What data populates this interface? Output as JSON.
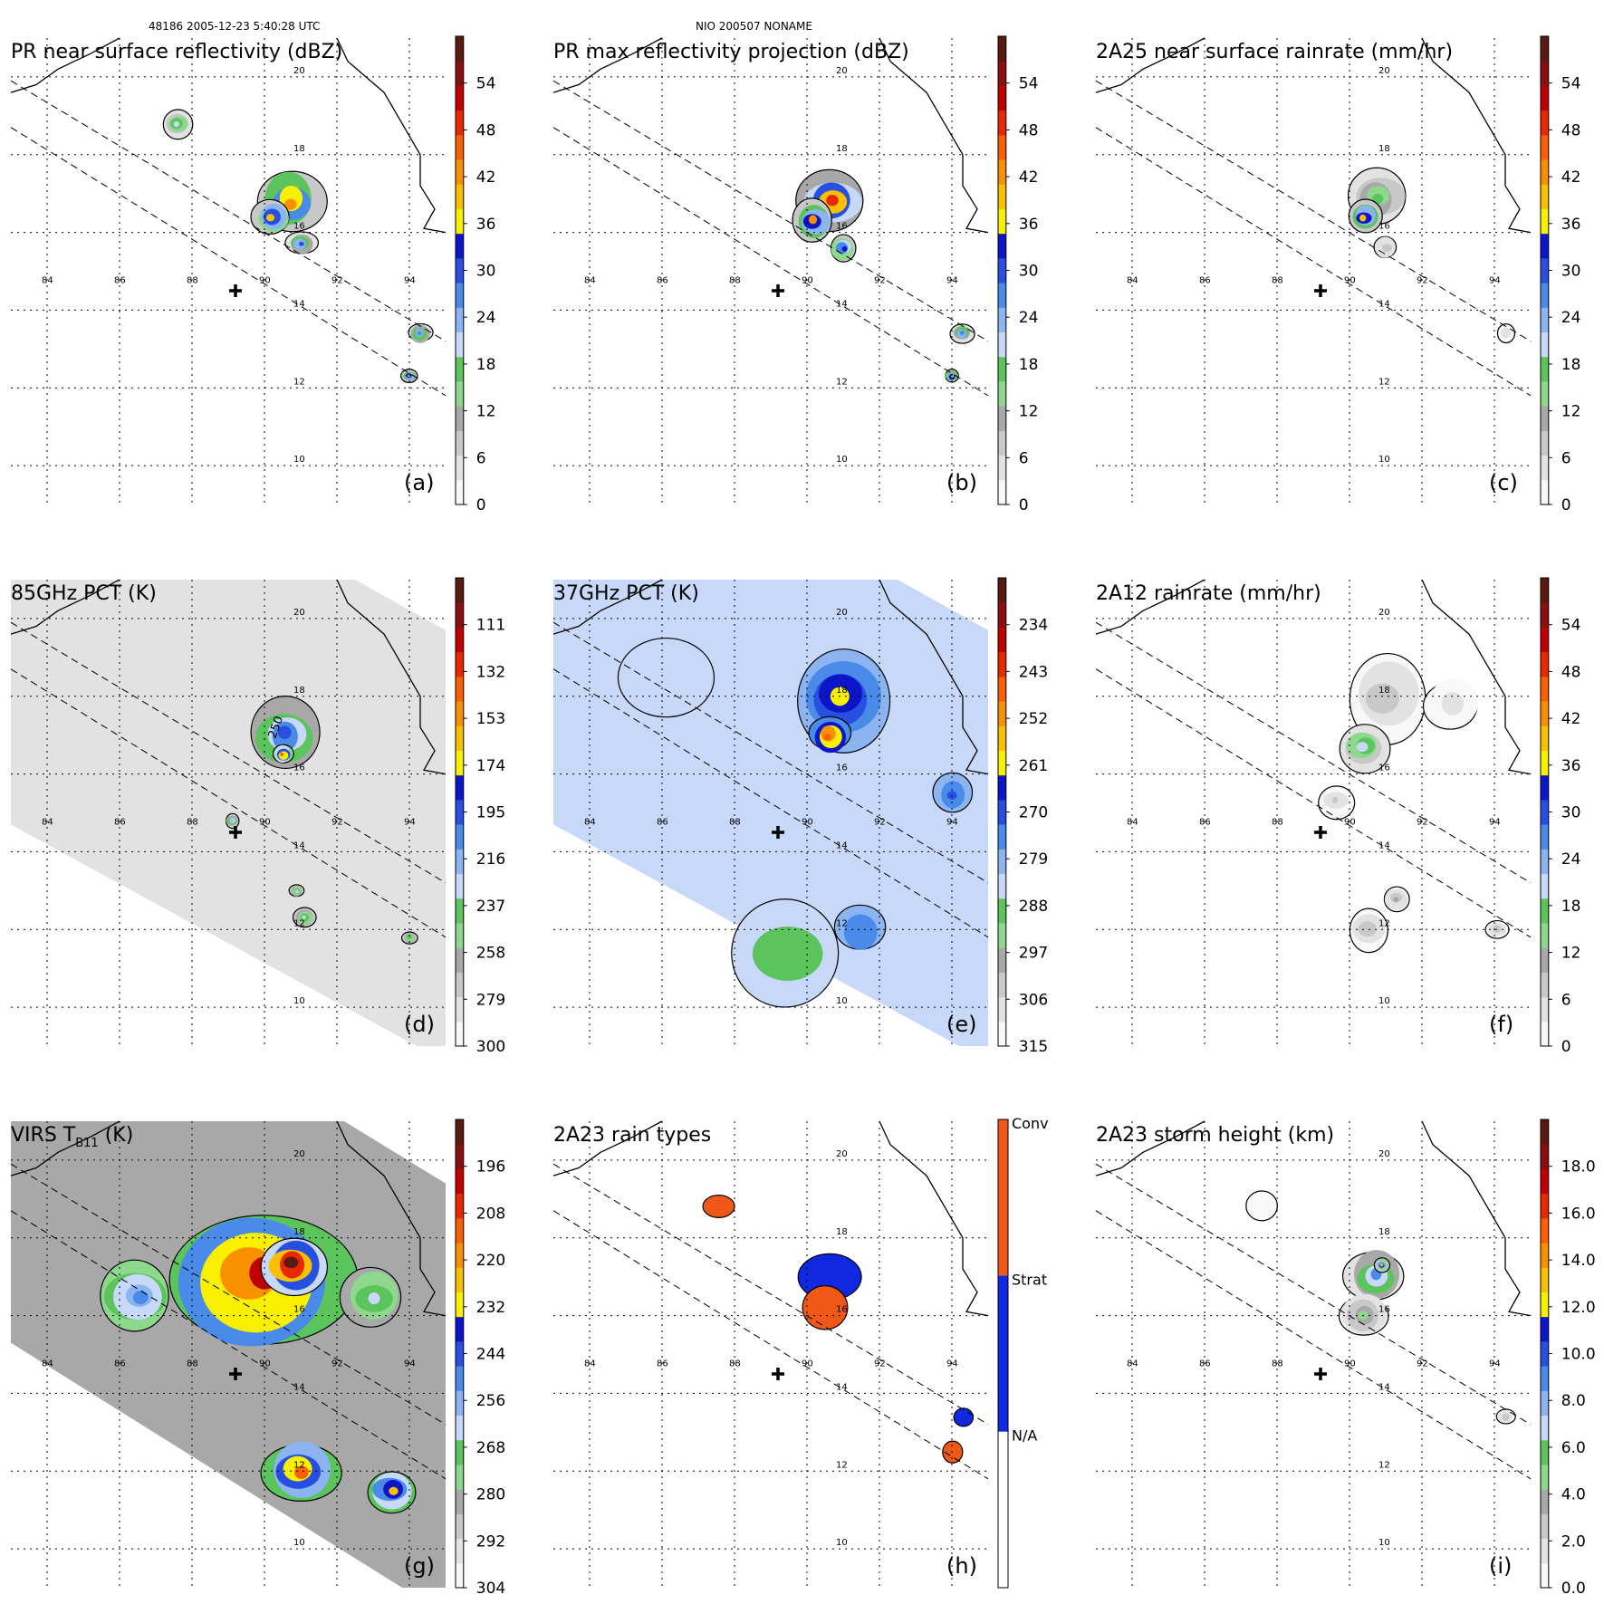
{
  "header": {
    "orbit": "48186 2005-12-23 5:40:28 UTC",
    "storm": "NIO 200507 NONAME"
  },
  "colors": {
    "scale": [
      "#f8f8f8",
      "#e2e2e2",
      "#c8c8c8",
      "#a8a8a8",
      "#8ed88e",
      "#5cc45c",
      "#c8d8f8",
      "#8cb4f0",
      "#4a8ae8",
      "#2850e0",
      "#0c16c8",
      "#f8f000",
      "#f8c000",
      "#f89000",
      "#f86000",
      "#e82800",
      "#c00000",
      "#8a1010",
      "#5a1a10"
    ],
    "land_line": "#000000",
    "swath_line": "#000000",
    "rain_conv": "#f05818",
    "rain_strat": "#1028e0",
    "rain_na": "#ffffff"
  },
  "chart_data": [
    {
      "panel": "a",
      "type": "heatmap",
      "title": "PR near surface reflectivity (dBZ)",
      "colorbar": {
        "ticks": [
          "0",
          "6",
          "12",
          "18",
          "24",
          "30",
          "36",
          "42",
          "48",
          "54"
        ],
        "vmin": 0,
        "vmax": 60
      },
      "lon_ticks": [
        "84",
        "86",
        "88",
        "90",
        "92",
        "94"
      ],
      "lat_ticks": [
        "10",
        "12",
        "14",
        "16",
        "18",
        "20"
      ],
      "lon_range": [
        83,
        95
      ],
      "lat_range": [
        9,
        21
      ],
      "storm_center": {
        "lon": 89.2,
        "lat": 14.5
      },
      "coverage": "pr",
      "regions": [
        {
          "lon": 90.7,
          "lat": 16.8,
          "r": 0.9,
          "peak": 44
        },
        {
          "lon": 90.2,
          "lat": 16.4,
          "r": 0.6,
          "peak": 38
        },
        {
          "lon": 91.0,
          "lat": 15.7,
          "r": 0.4,
          "peak": 30
        },
        {
          "lon": 87.6,
          "lat": 18.8,
          "r": 0.4,
          "peak": 22
        },
        {
          "lon": 94.3,
          "lat": 13.4,
          "r": 0.3,
          "peak": 28
        },
        {
          "lon": 94.0,
          "lat": 12.3,
          "r": 0.2,
          "peak": 40
        }
      ]
    },
    {
      "panel": "b",
      "type": "heatmap",
      "title": "PR max reflectivity projection (dBZ)",
      "colorbar": {
        "ticks": [
          "0",
          "6",
          "12",
          "18",
          "24",
          "30",
          "36",
          "42",
          "48",
          "54"
        ],
        "vmin": 0,
        "vmax": 60
      },
      "lon_ticks": [
        "84",
        "86",
        "88",
        "90",
        "92",
        "94"
      ],
      "lat_ticks": [
        "10",
        "12",
        "14",
        "16",
        "18",
        "20"
      ],
      "lon_range": [
        83,
        95
      ],
      "lat_range": [
        9,
        21
      ],
      "storm_center": {
        "lon": 89.2,
        "lat": 14.5
      },
      "coverage": "pr",
      "regions": [
        {
          "lon": 90.7,
          "lat": 16.8,
          "r": 0.9,
          "peak": 50
        },
        {
          "lon": 90.2,
          "lat": 16.3,
          "r": 0.6,
          "peak": 42
        },
        {
          "lon": 91.0,
          "lat": 15.6,
          "r": 0.4,
          "peak": 32
        },
        {
          "lon": 94.3,
          "lat": 13.4,
          "r": 0.3,
          "peak": 28
        },
        {
          "lon": 94.0,
          "lat": 12.3,
          "r": 0.2,
          "peak": 40
        }
      ]
    },
    {
      "panel": "c",
      "type": "heatmap",
      "title": "2A25 near surface rainrate (mm/hr)",
      "colorbar": {
        "ticks": [
          "0",
          "6",
          "12",
          "18",
          "24",
          "30",
          "36",
          "42",
          "48",
          "54"
        ],
        "vmin": 0,
        "vmax": 60
      },
      "lon_ticks": [
        "84",
        "86",
        "88",
        "90",
        "92",
        "94"
      ],
      "lat_ticks": [
        "10",
        "12",
        "14",
        "16",
        "18",
        "20"
      ],
      "lon_range": [
        83,
        95
      ],
      "lat_range": [
        9,
        21
      ],
      "storm_center": {
        "lon": 89.2,
        "lat": 14.5
      },
      "coverage": "pr",
      "regions": [
        {
          "lon": 90.8,
          "lat": 16.9,
          "r": 0.8,
          "peak": 16
        },
        {
          "lon": 90.4,
          "lat": 16.4,
          "r": 0.5,
          "peak": 40
        },
        {
          "lon": 91.0,
          "lat": 15.6,
          "r": 0.35,
          "peak": 8
        },
        {
          "lon": 94.3,
          "lat": 13.4,
          "r": 0.25,
          "peak": 6
        }
      ]
    },
    {
      "panel": "d",
      "type": "heatmap",
      "title": "85GHz PCT (K)",
      "colorbar": {
        "ticks": [
          "300",
          "279",
          "258",
          "237",
          "216",
          "195",
          "174",
          "153",
          "132",
          "111"
        ],
        "vmin": 300,
        "vmax": 90
      },
      "lon_ticks": [
        "84",
        "86",
        "88",
        "90",
        "92",
        "94"
      ],
      "lat_ticks": [
        "10",
        "12",
        "14",
        "16",
        "18",
        "20"
      ],
      "lon_range": [
        83,
        95
      ],
      "lat_range": [
        9,
        21
      ],
      "storm_center": {
        "lon": 89.2,
        "lat": 14.5
      },
      "coverage": "tmi",
      "background": 280,
      "contour_label": "250",
      "regions": [
        {
          "lon": 90.6,
          "lat": 17.0,
          "r": 1.0,
          "peak": 190
        },
        {
          "lon": 90.5,
          "lat": 16.5,
          "r": 0.3,
          "peak": 140
        },
        {
          "lon": 89.1,
          "lat": 14.8,
          "r": 0.2,
          "peak": 220
        },
        {
          "lon": 91.1,
          "lat": 12.3,
          "r": 0.3,
          "peak": 225
        },
        {
          "lon": 90.9,
          "lat": 13.0,
          "r": 0.2,
          "peak": 230
        },
        {
          "lon": 94.0,
          "lat": 11.8,
          "r": 0.2,
          "peak": 235
        }
      ]
    },
    {
      "panel": "e",
      "type": "heatmap",
      "title": "37GHz PCT (K)",
      "colorbar": {
        "ticks": [
          "315",
          "306",
          "297",
          "288",
          "279",
          "270",
          "261",
          "252",
          "243",
          "234"
        ],
        "vmin": 315,
        "vmax": 225
      },
      "lon_ticks": [
        "84",
        "86",
        "88",
        "90",
        "92",
        "94"
      ],
      "lat_ticks": [
        "10",
        "12",
        "14",
        "16",
        "18",
        "20"
      ],
      "lon_range": [
        83,
        95
      ],
      "lat_range": [
        9,
        21
      ],
      "storm_center": {
        "lon": 89.2,
        "lat": 14.5
      },
      "coverage": "tmi",
      "background": 282,
      "regions": [
        {
          "lon": 91.0,
          "lat": 18.0,
          "r": 1.4,
          "peak": 262
        },
        {
          "lon": 90.6,
          "lat": 17.0,
          "r": 0.6,
          "peak": 245
        },
        {
          "lon": 94.0,
          "lat": 15.5,
          "r": 0.6,
          "peak": 272
        },
        {
          "lon": 91.5,
          "lat": 12.0,
          "r": 0.8,
          "peak": 273
        },
        {
          "lon": 86.0,
          "lat": 18.5,
          "r": 1.2,
          "peak": 286
        },
        {
          "lon": 89.5,
          "lat": 11.5,
          "r": 1.5,
          "peak": 290
        }
      ]
    },
    {
      "panel": "f",
      "type": "heatmap",
      "title": "2A12 rainrate (mm/hr)",
      "colorbar": {
        "ticks": [
          "0",
          "6",
          "12",
          "18",
          "24",
          "30",
          "36",
          "42",
          "48",
          "54"
        ],
        "vmin": 0,
        "vmax": 60
      },
      "lon_ticks": [
        "84",
        "86",
        "88",
        "90",
        "92",
        "94"
      ],
      "lat_ticks": [
        "10",
        "12",
        "14",
        "16",
        "18",
        "20"
      ],
      "lon_range": [
        83,
        95
      ],
      "lat_range": [
        9,
        21
      ],
      "storm_center": {
        "lon": 89.2,
        "lat": 14.5
      },
      "coverage": "tmi",
      "regions": [
        {
          "lon": 91.0,
          "lat": 18.0,
          "r": 1.2,
          "peak": 9
        },
        {
          "lon": 90.4,
          "lat": 16.7,
          "r": 0.7,
          "peak": 22
        },
        {
          "lon": 92.8,
          "lat": 17.8,
          "r": 0.8,
          "peak": 5
        },
        {
          "lon": 89.6,
          "lat": 15.3,
          "r": 0.5,
          "peak": 7
        },
        {
          "lon": 90.5,
          "lat": 12.0,
          "r": 0.6,
          "peak": 8
        },
        {
          "lon": 91.3,
          "lat": 12.8,
          "r": 0.4,
          "peak": 10
        },
        {
          "lon": 94.1,
          "lat": 12.0,
          "r": 0.3,
          "peak": 9
        }
      ]
    },
    {
      "panel": "g",
      "type": "heatmap",
      "title": "VIRS T",
      "title_sub": "B11",
      "title_end": " (K)",
      "colorbar": {
        "ticks": [
          "304",
          "292",
          "280",
          "268",
          "256",
          "244",
          "232",
          "220",
          "208",
          "196"
        ],
        "vmin": 304,
        "vmax": 184
      },
      "lon_ticks": [
        "84",
        "86",
        "88",
        "90",
        "92",
        "94"
      ],
      "lat_ticks": [
        "10",
        "12",
        "14",
        "16",
        "18",
        "20"
      ],
      "lon_range": [
        83,
        95
      ],
      "lat_range": [
        9,
        21
      ],
      "storm_center": {
        "lon": 89.2,
        "lat": 14.5
      },
      "coverage": "virs",
      "background": 285,
      "regions": [
        {
          "lon": 89.8,
          "lat": 17.0,
          "r": 2.3,
          "peak": 200
        },
        {
          "lon": 90.8,
          "lat": 17.3,
          "r": 0.9,
          "peak": 190
        },
        {
          "lon": 86.5,
          "lat": 16.5,
          "r": 1.0,
          "peak": 252
        },
        {
          "lon": 91.0,
          "lat": 12.0,
          "r": 1.0,
          "peak": 215
        },
        {
          "lon": 93.5,
          "lat": 11.5,
          "r": 0.7,
          "peak": 222
        },
        {
          "lon": 93.0,
          "lat": 16.5,
          "r": 0.8,
          "peak": 262
        }
      ]
    },
    {
      "panel": "h",
      "type": "heatmap",
      "title": "2A23 rain types",
      "colorbar": {
        "ticks": [
          "N/A",
          "Strat",
          "Conv"
        ],
        "categorical": true
      },
      "lon_ticks": [
        "84",
        "86",
        "88",
        "90",
        "92",
        "94"
      ],
      "lat_ticks": [
        "10",
        "12",
        "14",
        "16",
        "18",
        "20"
      ],
      "lon_range": [
        83,
        95
      ],
      "lat_range": [
        9,
        21
      ],
      "storm_center": {
        "lon": 89.2,
        "lat": 14.5
      },
      "coverage": "pr",
      "regions": [
        {
          "lon": 90.7,
          "lat": 17.0,
          "r": 0.8,
          "cat": "Strat"
        },
        {
          "lon": 90.5,
          "lat": 16.2,
          "r": 0.6,
          "cat": "Conv"
        },
        {
          "lon": 87.6,
          "lat": 18.8,
          "r": 0.4,
          "cat": "Conv"
        },
        {
          "lon": 94.3,
          "lat": 13.4,
          "r": 0.25,
          "cat": "Strat"
        },
        {
          "lon": 94.0,
          "lat": 12.5,
          "r": 0.3,
          "cat": "Conv"
        }
      ]
    },
    {
      "panel": "i",
      "type": "heatmap",
      "title": "2A23 storm height (km)",
      "colorbar": {
        "ticks": [
          "0.0",
          "2.0",
          "4.0",
          "6.0",
          "8.0",
          "10.0",
          "12.0",
          "14.0",
          "16.0",
          "18.0"
        ],
        "vmin": 0,
        "vmax": 20
      },
      "lon_ticks": [
        "84",
        "86",
        "88",
        "90",
        "92",
        "94"
      ],
      "lat_ticks": [
        "10",
        "12",
        "14",
        "16",
        "18",
        "20"
      ],
      "lon_range": [
        83,
        95
      ],
      "lat_range": [
        9,
        21
      ],
      "storm_center": {
        "lon": 89.2,
        "lat": 14.5
      },
      "coverage": "pr",
      "regions": [
        {
          "lon": 90.7,
          "lat": 17.0,
          "r": 0.8,
          "peak": 9
        },
        {
          "lon": 90.9,
          "lat": 17.3,
          "r": 0.2,
          "peak": 13
        },
        {
          "lon": 90.4,
          "lat": 16.0,
          "r": 0.7,
          "peak": 5
        },
        {
          "lon": 94.3,
          "lat": 13.4,
          "r": 0.25,
          "peak": 3
        },
        {
          "lon": 87.6,
          "lat": 18.8,
          "r": 0.4,
          "peak": 1
        }
      ]
    }
  ]
}
